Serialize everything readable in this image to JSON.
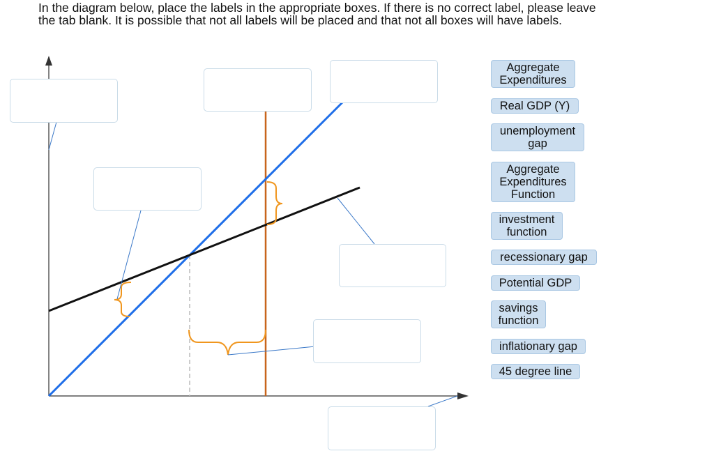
{
  "instructions": {
    "line1": "In the diagram below, place the labels in the appropriate boxes. If there is no correct label, please leave",
    "line2": "the tab blank. It is possible that not all labels will be placed and that not all boxes will have labels."
  },
  "colors": {
    "forty_five_line": "#1f6ee8",
    "expenditure_line": "#111111",
    "potential_gdp_line": "#c8651b",
    "brace": "#f0961e",
    "leader": "#3a78c8",
    "axis": "#333333",
    "dashed": "#bbbbbb",
    "chip_bg": "#cddff0",
    "box_border": "#c9dbe8"
  },
  "labels": [
    "Aggregate\nExpenditures",
    "Real GDP (Y)",
    "unemployment\ngap",
    "Aggregate\nExpenditures\nFunction",
    "investment\nfunction",
    "recessionary gap",
    "Potential GDP",
    "savings\nfunction",
    "inflationary gap",
    "45 degree line"
  ]
}
